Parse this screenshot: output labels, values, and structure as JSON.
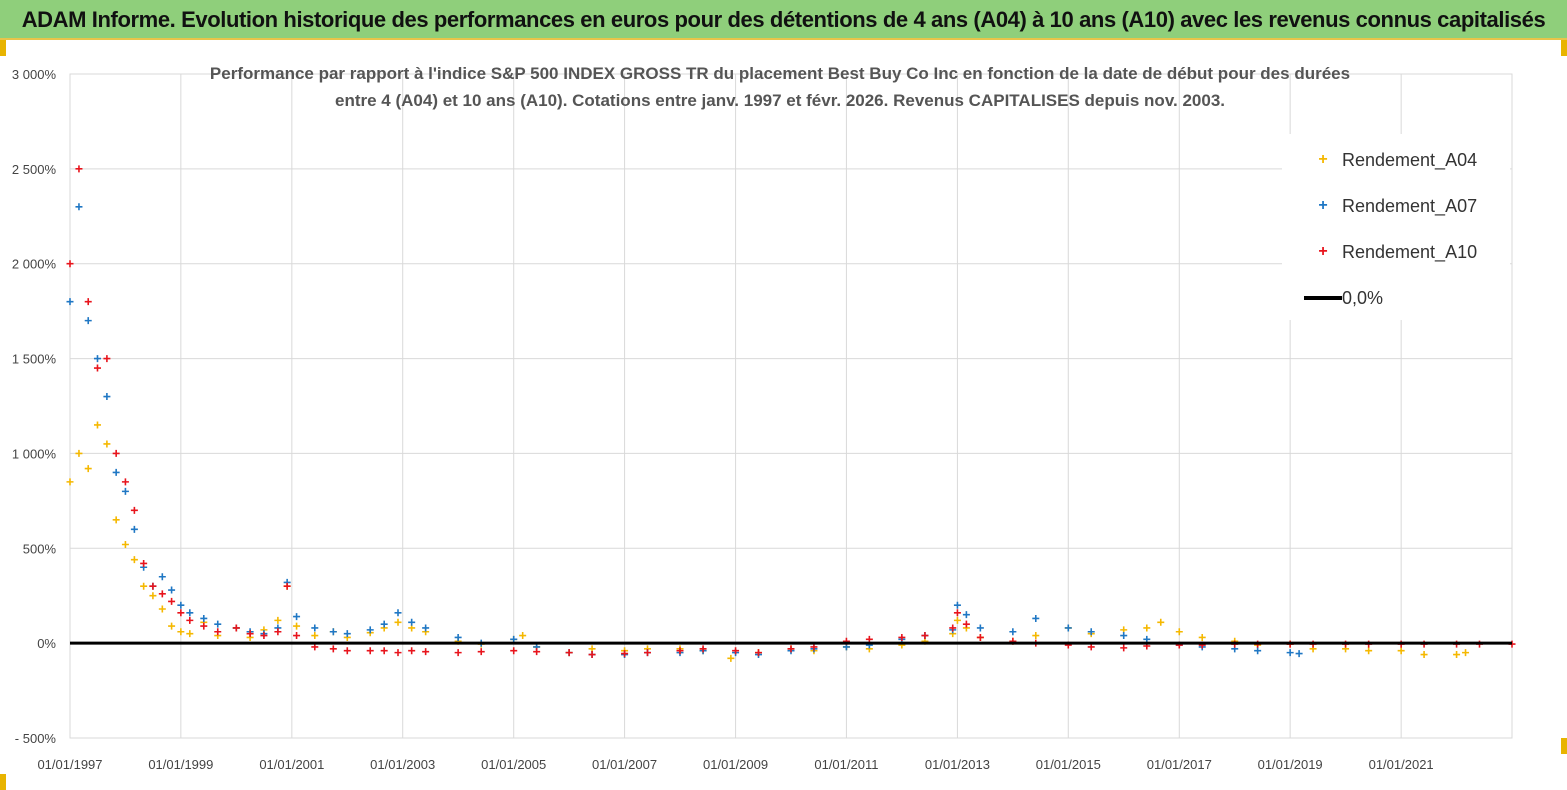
{
  "banner": {
    "title": "ADAM Informe. Evolution historique des performances en euros pour des détentions de 4 ans (A04) à 10 ans (A10) avec les revenus connus capitalisés"
  },
  "colors": {
    "banner_bg": "#8fcf7b",
    "a04": "#f5b800",
    "a07": "#1f77c4",
    "a10": "#e8141c",
    "zero": "#000000"
  },
  "chart_data": {
    "type": "scatter",
    "title_lines": [
      "Performance par rapport à l'indice S&P 500 INDEX GROSS TR  du placement Best Buy Co Inc en fonction de la date de début pour des durées",
      "entre 4 (A04) et 10 ans (A10). Cotations entre janv. 1997 et févr. 2026. Revenus CAPITALISES depuis nov. 2003."
    ],
    "y_axis": {
      "min": -500,
      "max": 3000,
      "step": 500,
      "tick_labels": [
        "- 500%",
        "0%",
        "500%",
        "1 000%",
        "1 500%",
        "2 000%",
        "2 500%",
        "3 000%"
      ]
    },
    "x_axis": {
      "min": "1997-01-01",
      "max": "2023-01-01",
      "tick_labels": [
        "01/01/1997",
        "01/01/1999",
        "01/01/2001",
        "01/01/2003",
        "01/01/2005",
        "01/01/2007",
        "01/01/2009",
        "01/01/2011",
        "01/01/2013",
        "01/01/2015",
        "01/01/2017",
        "01/01/2019",
        "01/01/2021"
      ]
    },
    "grid": true,
    "legend_position": "top-right",
    "legend": [
      "Rendement_A04",
      "Rendement_A07",
      "Rendement_A10",
      "0,0%"
    ],
    "series": [
      {
        "name": "Rendement_A04",
        "x": [
          "1997-01-01",
          "1997-03-01",
          "1997-05-01",
          "1997-07-01",
          "1997-09-01",
          "1997-11-01",
          "1998-01-01",
          "1998-03-01",
          "1998-05-01",
          "1998-07-01",
          "1998-09-01",
          "1998-11-01",
          "1999-01-01",
          "1999-03-01",
          "1999-06-01",
          "1999-09-01",
          "2000-01-01",
          "2000-04-01",
          "2000-07-01",
          "2000-10-01",
          "2000-12-01",
          "2001-02-01",
          "2001-06-01",
          "2001-10-01",
          "2002-01-01",
          "2002-06-01",
          "2002-09-01",
          "2002-12-01",
          "2003-03-01",
          "2003-06-01",
          "2004-01-01",
          "2004-06-01",
          "2005-01-01",
          "2005-03-01",
          "2005-06-01",
          "2006-01-01",
          "2006-06-01",
          "2007-01-01",
          "2007-06-01",
          "2008-01-01",
          "2008-06-01",
          "2008-12-01",
          "2009-06-01",
          "2010-01-01",
          "2010-06-01",
          "2011-01-01",
          "2011-06-01",
          "2012-01-01",
          "2012-06-01",
          "2012-12-01",
          "2013-01-01",
          "2013-03-01",
          "2013-06-01",
          "2014-01-01",
          "2014-06-01",
          "2015-01-01",
          "2015-06-01",
          "2016-01-01",
          "2016-06-01",
          "2016-09-01",
          "2017-01-01",
          "2017-06-01",
          "2018-01-01",
          "2018-06-01",
          "2019-01-01",
          "2019-06-01",
          "2020-01-01",
          "2020-06-01",
          "2021-01-01",
          "2021-06-01",
          "2022-01-01",
          "2022-03-01"
        ],
        "values": [
          850,
          1000,
          920,
          1150,
          1050,
          650,
          520,
          440,
          300,
          250,
          180,
          90,
          60,
          50,
          110,
          40,
          80,
          30,
          70,
          120,
          300,
          90,
          40,
          60,
          30,
          55,
          80,
          110,
          80,
          60,
          10,
          -5,
          20,
          40,
          -20,
          -50,
          -30,
          -40,
          -30,
          -30,
          -40,
          -80,
          -50,
          -30,
          -40,
          -20,
          -30,
          -10,
          10,
          50,
          120,
          80,
          30,
          10,
          40,
          80,
          50,
          70,
          80,
          110,
          60,
          30,
          10,
          -10,
          -5,
          -30,
          -30,
          -40,
          -40,
          -60,
          -60,
          -50
        ]
      },
      {
        "name": "Rendement_A07",
        "x": [
          "1997-01-01",
          "1997-03-01",
          "1997-05-01",
          "1997-07-01",
          "1997-09-01",
          "1997-11-01",
          "1998-01-01",
          "1998-03-01",
          "1998-05-01",
          "1998-07-01",
          "1998-09-01",
          "1998-11-01",
          "1999-01-01",
          "1999-03-01",
          "1999-06-01",
          "1999-09-01",
          "2000-01-01",
          "2000-04-01",
          "2000-07-01",
          "2000-10-01",
          "2000-12-01",
          "2001-02-01",
          "2001-06-01",
          "2001-10-01",
          "2002-01-01",
          "2002-06-01",
          "2002-09-01",
          "2002-12-01",
          "2003-03-01",
          "2003-06-01",
          "2004-01-01",
          "2004-06-01",
          "2005-01-01",
          "2005-06-01",
          "2006-01-01",
          "2006-06-01",
          "2007-01-01",
          "2007-06-01",
          "2008-01-01",
          "2008-06-01",
          "2009-01-01",
          "2009-06-01",
          "2010-01-01",
          "2010-06-01",
          "2011-01-01",
          "2011-06-01",
          "2012-01-01",
          "2012-06-01",
          "2012-12-01",
          "2013-01-01",
          "2013-03-01",
          "2013-06-01",
          "2014-01-01",
          "2014-06-01",
          "2015-01-01",
          "2015-06-01",
          "2016-01-01",
          "2016-06-01",
          "2017-01-01",
          "2017-06-01",
          "2018-01-01",
          "2018-06-01",
          "2019-01-01",
          "2019-03-01"
        ],
        "values": [
          1800,
          2300,
          1700,
          1500,
          1300,
          900,
          800,
          600,
          400,
          300,
          350,
          280,
          200,
          160,
          130,
          100,
          80,
          60,
          50,
          80,
          320,
          140,
          80,
          60,
          50,
          70,
          100,
          160,
          110,
          80,
          30,
          0,
          20,
          -20,
          -50,
          -60,
          -60,
          -50,
          -50,
          -40,
          -50,
          -60,
          -40,
          -30,
          -20,
          -10,
          20,
          40,
          70,
          200,
          150,
          80,
          60,
          130,
          80,
          60,
          40,
          20,
          -10,
          -20,
          -30,
          -40,
          -50,
          -55
        ]
      },
      {
        "name": "Rendement_A10",
        "x": [
          "1997-01-01",
          "1997-03-01",
          "1997-05-01",
          "1997-07-01",
          "1997-09-01",
          "1997-11-01",
          "1998-01-01",
          "1998-03-01",
          "1998-05-01",
          "1998-07-01",
          "1998-09-01",
          "1998-11-01",
          "1999-01-01",
          "1999-03-01",
          "1999-06-01",
          "1999-09-01",
          "2000-01-01",
          "2000-04-01",
          "2000-07-01",
          "2000-10-01",
          "2000-12-01",
          "2001-02-01",
          "2001-06-01",
          "2001-10-01",
          "2002-01-01",
          "2002-06-01",
          "2002-09-01",
          "2002-12-01",
          "2003-03-01",
          "2003-06-01",
          "2004-01-01",
          "2004-06-01",
          "2005-01-01",
          "2005-06-01",
          "2006-01-01",
          "2006-06-01",
          "2007-01-01",
          "2007-06-01",
          "2008-01-01",
          "2008-06-01",
          "2009-01-01",
          "2009-06-01",
          "2010-01-01",
          "2010-06-01",
          "2011-01-01",
          "2011-06-01",
          "2012-01-01",
          "2012-06-01",
          "2012-12-01",
          "2013-01-01",
          "2013-03-01",
          "2013-06-01",
          "2014-01-01",
          "2014-06-01",
          "2015-01-01",
          "2015-06-01",
          "2016-01-01",
          "2016-06-01",
          "2017-01-01",
          "2017-06-01",
          "2018-01-01",
          "2018-06-01",
          "2019-01-01",
          "2019-06-01",
          "2020-01-01",
          "2020-06-01",
          "2021-01-01",
          "2021-06-01",
          "2022-01-01",
          "2022-06-01",
          "2023-01-01"
        ],
        "values": [
          2000,
          2500,
          1800,
          1450,
          1500,
          1000,
          850,
          700,
          420,
          300,
          260,
          220,
          160,
          120,
          90,
          60,
          80,
          50,
          40,
          60,
          300,
          40,
          -20,
          -30,
          -40,
          -40,
          -40,
          -50,
          -40,
          -45,
          -50,
          -45,
          -40,
          -45,
          -50,
          -60,
          -55,
          -50,
          -40,
          -30,
          -40,
          -50,
          -30,
          -20,
          10,
          20,
          30,
          40,
          80,
          160,
          100,
          30,
          10,
          0,
          -10,
          -20,
          -25,
          -15,
          -10,
          -10,
          -5,
          -5,
          -5,
          -5,
          -5,
          -5,
          -5,
          -5,
          -5,
          -5,
          -5
        ]
      }
    ],
    "zero_line": {
      "name": "0,0%",
      "value": 0
    }
  }
}
